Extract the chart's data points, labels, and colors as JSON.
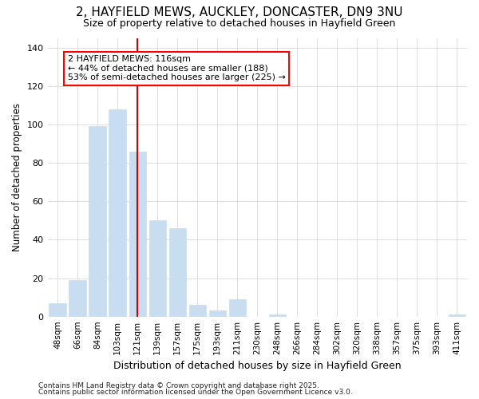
{
  "title_line1": "2, HAYFIELD MEWS, AUCKLEY, DONCASTER, DN9 3NU",
  "title_line2": "Size of property relative to detached houses in Hayfield Green",
  "xlabel": "Distribution of detached houses by size in Hayfield Green",
  "ylabel": "Number of detached properties",
  "bar_color": "#c8ddf0",
  "bar_edgecolor": "#c8ddf0",
  "vline_color": "#cc0000",
  "background_color": "#ffffff",
  "grid_color": "#dddddd",
  "footer_line1": "Contains HM Land Registry data © Crown copyright and database right 2025.",
  "footer_line2": "Contains public sector information licensed under the Open Government Licence v3.0.",
  "annotation_text_line1": "2 HAYFIELD MEWS: 116sqm",
  "annotation_text_line2": "← 44% of detached houses are smaller (188)",
  "annotation_text_line3": "53% of semi-detached houses are larger (225) →",
  "categories": [
    "48sqm",
    "66sqm",
    "84sqm",
    "103sqm",
    "121sqm",
    "139sqm",
    "157sqm",
    "175sqm",
    "193sqm",
    "211sqm",
    "230sqm",
    "248sqm",
    "266sqm",
    "284sqm",
    "302sqm",
    "320sqm",
    "338sqm",
    "357sqm",
    "375sqm",
    "393sqm",
    "411sqm"
  ],
  "values": [
    7,
    19,
    99,
    108,
    86,
    50,
    46,
    6,
    3,
    9,
    0,
    1,
    0,
    0,
    0,
    0,
    0,
    0,
    0,
    0,
    1
  ],
  "ylim": [
    0,
    145
  ],
  "yticks": [
    0,
    20,
    40,
    60,
    80,
    100,
    120,
    140
  ],
  "vline_x": 4.0
}
